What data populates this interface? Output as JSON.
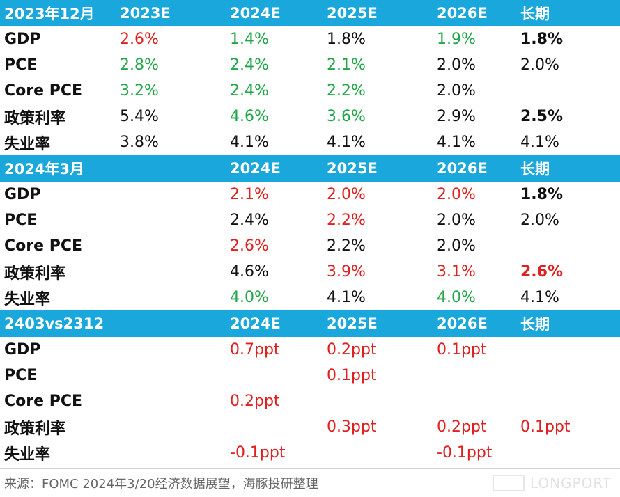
{
  "colors": {
    "header_bg": "#1aa7dc",
    "up": "#e02020",
    "down": "#22a64a",
    "neutral": "#111111"
  },
  "sections": [
    {
      "header": [
        "2023年12月",
        "2023E",
        "2024E",
        "2025E",
        "2026E",
        "长期"
      ],
      "rows": [
        {
          "label": "GDP",
          "cells": [
            {
              "text": "2.6%",
              "color": "red"
            },
            {
              "text": "1.4%",
              "color": "green"
            },
            {
              "text": "1.8%",
              "color": "black"
            },
            {
              "text": "1.9%",
              "color": "green"
            },
            {
              "text": "1.8%",
              "color": "black",
              "bold": true
            }
          ]
        },
        {
          "label": "PCE",
          "cells": [
            {
              "text": "2.8%",
              "color": "green"
            },
            {
              "text": "2.4%",
              "color": "green"
            },
            {
              "text": "2.1%",
              "color": "green"
            },
            {
              "text": "2.0%",
              "color": "black"
            },
            {
              "text": "2.0%",
              "color": "black"
            }
          ]
        },
        {
          "label": "Core PCE",
          "cells": [
            {
              "text": "3.2%",
              "color": "green"
            },
            {
              "text": "2.4%",
              "color": "green"
            },
            {
              "text": "2.2%",
              "color": "green"
            },
            {
              "text": "2.0%",
              "color": "black"
            },
            {
              "text": "",
              "color": "black"
            }
          ]
        },
        {
          "label": "政策利率",
          "cells": [
            {
              "text": "5.4%",
              "color": "black"
            },
            {
              "text": "4.6%",
              "color": "green"
            },
            {
              "text": "3.6%",
              "color": "green"
            },
            {
              "text": "2.9%",
              "color": "black"
            },
            {
              "text": "2.5%",
              "color": "black",
              "bold": true
            }
          ]
        },
        {
          "label": "失业率",
          "cells": [
            {
              "text": "3.8%",
              "color": "black"
            },
            {
              "text": "4.1%",
              "color": "black"
            },
            {
              "text": "4.1%",
              "color": "black"
            },
            {
              "text": "4.1%",
              "color": "black"
            },
            {
              "text": "4.1%",
              "color": "black"
            }
          ]
        }
      ]
    },
    {
      "header": [
        "2024年3月",
        "",
        "2024E",
        "2025E",
        "2026E",
        "长期"
      ],
      "rows": [
        {
          "label": "GDP",
          "cells": [
            {
              "text": "",
              "color": "black"
            },
            {
              "text": "2.1%",
              "color": "red"
            },
            {
              "text": "2.0%",
              "color": "red"
            },
            {
              "text": "2.0%",
              "color": "red"
            },
            {
              "text": "1.8%",
              "color": "black",
              "bold": true
            }
          ]
        },
        {
          "label": "PCE",
          "cells": [
            {
              "text": "",
              "color": "black"
            },
            {
              "text": "2.4%",
              "color": "black"
            },
            {
              "text": "2.2%",
              "color": "red"
            },
            {
              "text": "2.0%",
              "color": "black"
            },
            {
              "text": "2.0%",
              "color": "black"
            }
          ]
        },
        {
          "label": "Core PCE",
          "cells": [
            {
              "text": "",
              "color": "black"
            },
            {
              "text": "2.6%",
              "color": "red"
            },
            {
              "text": "2.2%",
              "color": "black"
            },
            {
              "text": "2.0%",
              "color": "black"
            },
            {
              "text": "",
              "color": "black"
            }
          ]
        },
        {
          "label": "政策利率",
          "cells": [
            {
              "text": "",
              "color": "black"
            },
            {
              "text": "4.6%",
              "color": "black"
            },
            {
              "text": "3.9%",
              "color": "red"
            },
            {
              "text": "3.1%",
              "color": "red"
            },
            {
              "text": "2.6%",
              "color": "red",
              "bold": true
            }
          ]
        },
        {
          "label": "失业率",
          "cells": [
            {
              "text": "",
              "color": "black"
            },
            {
              "text": "4.0%",
              "color": "green"
            },
            {
              "text": "4.1%",
              "color": "black"
            },
            {
              "text": "4.0%",
              "color": "green"
            },
            {
              "text": "4.1%",
              "color": "black"
            }
          ]
        }
      ]
    },
    {
      "header": [
        "2403vs2312",
        "",
        "2024E",
        "2025E",
        "2026E",
        "长期"
      ],
      "rows": [
        {
          "label": "GDP",
          "cells": [
            {
              "text": "",
              "color": "black"
            },
            {
              "text": "0.7ppt",
              "color": "red"
            },
            {
              "text": "0.2ppt",
              "color": "red"
            },
            {
              "text": "0.1ppt",
              "color": "red"
            },
            {
              "text": "",
              "color": "black"
            }
          ]
        },
        {
          "label": "PCE",
          "cells": [
            {
              "text": "",
              "color": "black"
            },
            {
              "text": "",
              "color": "black"
            },
            {
              "text": "0.1ppt",
              "color": "red"
            },
            {
              "text": "",
              "color": "black"
            },
            {
              "text": "",
              "color": "black"
            }
          ]
        },
        {
          "label": "Core PCE",
          "cells": [
            {
              "text": "",
              "color": "black"
            },
            {
              "text": "0.2ppt",
              "color": "red"
            },
            {
              "text": "",
              "color": "black"
            },
            {
              "text": "",
              "color": "black"
            },
            {
              "text": "",
              "color": "black"
            }
          ]
        },
        {
          "label": "政策利率",
          "cells": [
            {
              "text": "",
              "color": "black"
            },
            {
              "text": "",
              "color": "black"
            },
            {
              "text": "0.3ppt",
              "color": "red"
            },
            {
              "text": "0.2ppt",
              "color": "red"
            },
            {
              "text": "0.1ppt",
              "color": "red"
            }
          ]
        },
        {
          "label": "失业率",
          "cells": [
            {
              "text": "",
              "color": "black"
            },
            {
              "text": "-0.1ppt",
              "color": "red"
            },
            {
              "text": "",
              "color": "black"
            },
            {
              "text": "-0.1ppt",
              "color": "red"
            },
            {
              "text": "",
              "color": "black"
            }
          ]
        }
      ]
    }
  ],
  "source": "来源：FOMC 2024年3/20经济数据展望，海豚投研整理",
  "watermark": "LONGPORT"
}
